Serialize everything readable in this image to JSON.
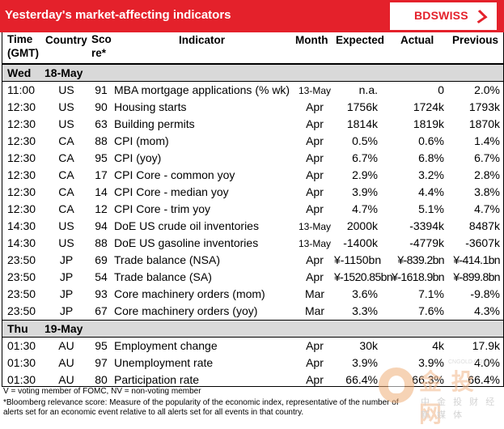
{
  "header": {
    "title": "Yesterday's market-affecting indicators",
    "logo_text": "BDSWISS"
  },
  "columns": {
    "time": [
      "Time",
      "(GMT)"
    ],
    "country": "Country",
    "score": [
      "Sco",
      "re*"
    ],
    "indicator": "Indicator",
    "month": "Month",
    "expected": "Expected",
    "actual": "Actual",
    "previous": "Previous"
  },
  "days": [
    {
      "day": "Wed",
      "date": "18-May",
      "rows": [
        {
          "time": "11:00",
          "country": "US",
          "score": "91",
          "indicator": "MBA mortgage applications (% wk)",
          "month": "13-May",
          "expected": "n.a.",
          "actual": "0",
          "previous": "2.0%"
        },
        {
          "time": "12:30",
          "country": "US",
          "score": "90",
          "indicator": "Housing starts",
          "month": "Apr",
          "expected": "1756k",
          "actual": "1724k",
          "previous": "1793k"
        },
        {
          "time": "12:30",
          "country": "US",
          "score": "63",
          "indicator": "Building permits",
          "month": "Apr",
          "expected": "1814k",
          "actual": "1819k",
          "previous": "1870k"
        },
        {
          "time": "12:30",
          "country": "CA",
          "score": "88",
          "indicator": "CPI (mom)",
          "month": "Apr",
          "expected": "0.5%",
          "actual": "0.6%",
          "previous": "1.4%"
        },
        {
          "time": "12:30",
          "country": "CA",
          "score": "95",
          "indicator": "CPI (yoy)",
          "month": "Apr",
          "expected": "6.7%",
          "actual": "6.8%",
          "previous": "6.7%"
        },
        {
          "time": "12:30",
          "country": "CA",
          "score": "17",
          "indicator": "CPI Core - common yoy",
          "month": "Apr",
          "expected": "2.9%",
          "actual": "3.2%",
          "previous": "2.8%"
        },
        {
          "time": "12:30",
          "country": "CA",
          "score": "14",
          "indicator": "CPI Core - median yoy",
          "month": "Apr",
          "expected": "3.9%",
          "actual": "4.4%",
          "previous": "3.8%"
        },
        {
          "time": "12:30",
          "country": "CA",
          "score": "12",
          "indicator": "CPI Core - trim yoy",
          "month": "Apr",
          "expected": "4.7%",
          "actual": "5.1%",
          "previous": "4.7%"
        },
        {
          "time": "14:30",
          "country": "US",
          "score": "94",
          "indicator": "DoE US crude oil inventories",
          "month": "13-May",
          "expected": "2000k",
          "actual": "-3394k",
          "previous": "8487k"
        },
        {
          "time": "14:30",
          "country": "US",
          "score": "88",
          "indicator": "DoE US gasoline inventories",
          "month": "13-May",
          "expected": "-1400k",
          "actual": "-4779k",
          "previous": "-3607k"
        },
        {
          "time": "23:50",
          "country": "JP",
          "score": "69",
          "indicator": "Trade balance (NSA)",
          "month": "Apr",
          "expected": "¥-1150bn",
          "actual": "¥-839.2bn",
          "previous": "¥-414.1bn"
        },
        {
          "time": "23:50",
          "country": "JP",
          "score": "54",
          "indicator": "Trade balance (SA)",
          "month": "Apr",
          "expected": "¥-1520.85bn",
          "actual": "¥-1618.9bn",
          "previous": "¥-899.8bn"
        },
        {
          "time": "23:50",
          "country": "JP",
          "score": "93",
          "indicator": "Core machinery orders (mom)",
          "month": "Mar",
          "expected": "3.6%",
          "actual": "7.1%",
          "previous": "-9.8%"
        },
        {
          "time": "23:50",
          "country": "JP",
          "score": "67",
          "indicator": "Core machinery orders (yoy)",
          "month": "Mar",
          "expected": "3.3%",
          "actual": "7.6%",
          "previous": "4.3%"
        }
      ]
    },
    {
      "day": "Thu",
      "date": "19-May",
      "rows": [
        {
          "time": "01:30",
          "country": "AU",
          "score": "95",
          "indicator": "Employment change",
          "month": "Apr",
          "expected": "30k",
          "actual": "4k",
          "previous": "17.9k"
        },
        {
          "time": "01:30",
          "country": "AU",
          "score": "97",
          "indicator": "Unemployment rate",
          "month": "Apr",
          "expected": "3.9%",
          "actual": "3.9%",
          "previous": "4.0%"
        },
        {
          "time": "01:30",
          "country": "AU",
          "score": "80",
          "indicator": "Participation rate",
          "month": "Apr",
          "expected": "66.4%",
          "actual": "66.3%",
          "previous": "66.4%"
        }
      ]
    }
  ],
  "footnotes": [
    "V = voting member of FOMC, NV = non-voting member",
    "*Bloomberg relevance score:  Measure of the popularity of the economic index, representative of the number of",
    "alerts set for an economic event relative to all alerts set for all events in that country."
  ],
  "watermark": {
    "url": "CNGOLD.COM.CN",
    "brand": "金 投 网",
    "tagline": "中 金 投 财 经 新 媒 体"
  }
}
